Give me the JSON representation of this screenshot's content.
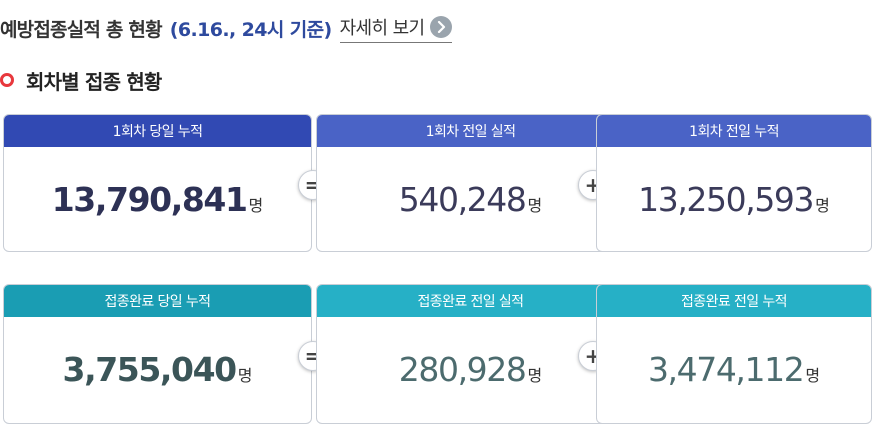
{
  "header": {
    "title": "예방접종실적 총 현황",
    "date_text": "(6.16., 24시 기준)",
    "detail_label": "자세히 보기",
    "detail_icon": "chevron-right-icon"
  },
  "section": {
    "title": "회차별 접종 현황",
    "icon": "ring-icon",
    "accent": "#e8383d"
  },
  "unit": "명",
  "operators": {
    "equals": "=",
    "plus": "+"
  },
  "rows": [
    {
      "cards": [
        {
          "label": "1회차 당일 누적",
          "value": "13,790,841",
          "header_color": "#3149b3"
        },
        {
          "label": "1회차 전일 실적",
          "value": "540,248",
          "header_color": "#4a63c6"
        },
        {
          "label": "1회차 전일 누적",
          "value": "13,250,593",
          "header_color": "#4a63c6"
        }
      ]
    },
    {
      "cards": [
        {
          "label": "접종완료 당일 누적",
          "value": "3,755,040",
          "header_color": "#1a9db3"
        },
        {
          "label": "접종완료 전일 실적",
          "value": "280,928",
          "header_color": "#26b0c6"
        },
        {
          "label": "접종완료 전일 누적",
          "value": "3,474,112",
          "header_color": "#26b0c6"
        }
      ]
    }
  ]
}
